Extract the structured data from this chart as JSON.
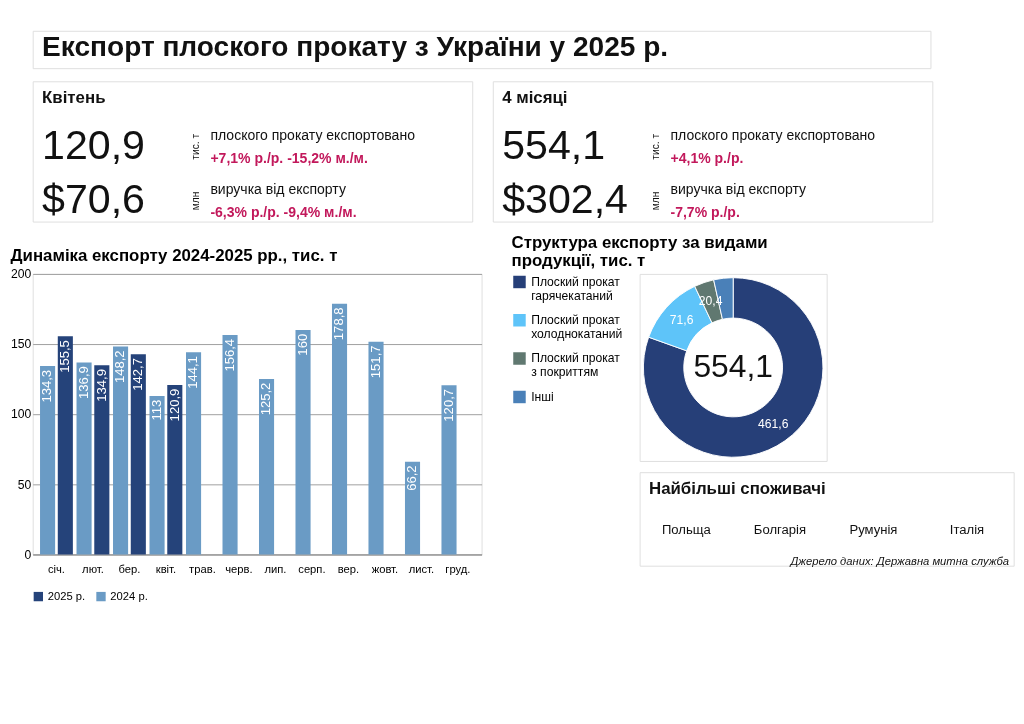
{
  "chart_data": [
    {
      "type": "other",
      "title": "Експорт плоского прокату з України у 2025 р."
    },
    {
      "type": "other",
      "title": "Квітень",
      "annotations": [
        "120,9",
        "тис. т",
        "плоского прокату експортовано",
        "+7,1% р./р.   -15,2% м./м.",
        "$70,6",
        "млн",
        "виручка від експорту",
        "-6,3% р./р.   -9,4% м./м."
      ]
    },
    {
      "type": "other",
      "title": "4 місяці",
      "annotations": [
        "554,1",
        "тис. т",
        "плоского прокату експортовано",
        "+4,1% р./р.",
        "$302,4",
        "млн",
        "виручка від експорту",
        "-7,7% р./р."
      ]
    },
    {
      "type": "bar",
      "title": "Динаміка експорту 2024-2025 рр., тис. т",
      "categories": [
        "січ.",
        "лют.",
        "бер.",
        "квіт.",
        "трав.",
        "черв.",
        "лип.",
        "серп.",
        "вер.",
        "жовт.",
        "лист.",
        "груд."
      ],
      "series": [
        {
          "name": "2025 р.",
          "color": "#25437a",
          "values": [
            155.5,
            134.9,
            142.7,
            120.9,
            null,
            null,
            null,
            null,
            null,
            null,
            null,
            null
          ],
          "value_labels": [
            "155,5",
            "134,9",
            "142,7",
            "120,9",
            null,
            null,
            null,
            null,
            null,
            null,
            null,
            null
          ]
        },
        {
          "name": "2024 р.",
          "color": "#6a9bc5",
          "values": [
            134.3,
            136.9,
            148.2,
            113,
            144.1,
            156.4,
            125.2,
            160,
            178.8,
            151.7,
            66.2,
            120.7
          ],
          "value_labels": [
            "134,3",
            "136,9",
            "148,2",
            "113",
            "144,1",
            "156,4",
            "125,2",
            "160",
            "178,8",
            "151,7",
            "66,2",
            "120,7"
          ]
        }
      ],
      "ylim": [
        0,
        200
      ],
      "yticks": [
        0,
        50,
        100,
        150,
        200
      ],
      "grid": "y",
      "legend": "bottom"
    },
    {
      "type": "donut",
      "title": "Структура експорту за видами продукції, тис. т",
      "categories": [
        "Плоский прокат гарячекатаний",
        "Плоский прокат холоднокатаний",
        "Плоский прокат з покриттям",
        "Інші"
      ],
      "values": [
        461.6,
        71.6,
        20.4,
        20
      ],
      "value_labels": [
        "461,6",
        "71,6",
        "20,4",
        null
      ],
      "colors": [
        "#263f78",
        "#5ec4f9",
        "#607870",
        "#4a80b8"
      ],
      "annotations": [
        "554,1"
      ],
      "legend": "left"
    },
    {
      "type": "other",
      "title": "Найбільші споживачі",
      "annotations": [
        "Польща",
        "Болгарія",
        "Румунія",
        "Італія",
        "Джерело даних: Державна митна служба"
      ]
    }
  ]
}
